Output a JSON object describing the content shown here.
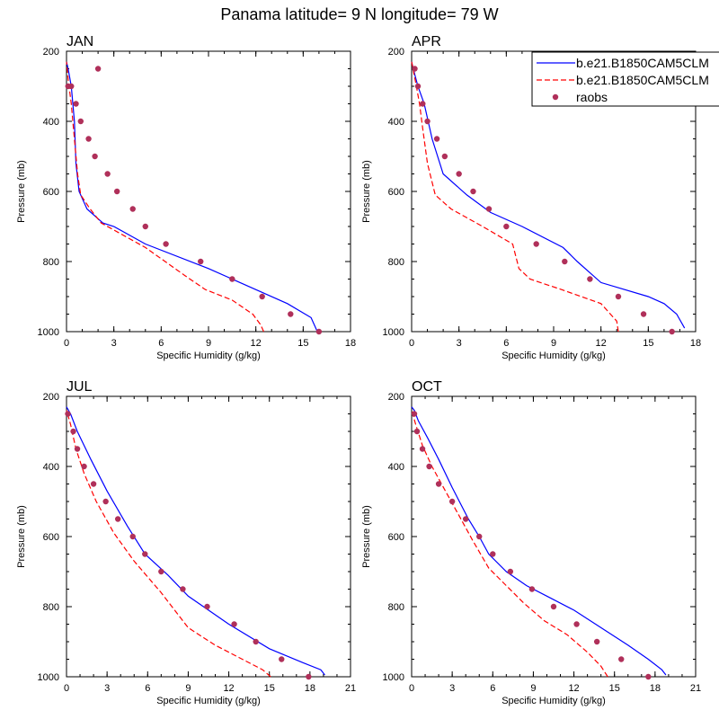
{
  "title": "Panama  latitude= 9 N longitude= 79 W",
  "colors": {
    "model1": "#0000ff",
    "model2": "#ff0000",
    "raobs": "#b0305a"
  },
  "legend": {
    "entries": [
      {
        "label": "b.e21.B1850CAM5CLM",
        "style": "solid",
        "color": "#0000ff"
      },
      {
        "label": "b.e21.B1850CAM5CLM",
        "style": "dashed",
        "color": "#ff0000"
      },
      {
        "label": "raobs",
        "style": "marker",
        "color": "#b0305a"
      }
    ]
  },
  "chart_data": [
    {
      "type": "line",
      "title": "JAN",
      "xlabel": "Specific Humidity (g/kg)",
      "ylabel": "Pressure (mb)",
      "xlim": [
        0,
        18
      ],
      "ylim": [
        1000,
        200
      ],
      "xticks": [
        0,
        3,
        6,
        9,
        12,
        15,
        18
      ],
      "yticks": [
        200,
        400,
        600,
        800,
        1000
      ],
      "series": [
        {
          "name": "b.e21.B1850CAM5CLM",
          "style": "solid",
          "x": [
            15.9,
            15.5,
            14.0,
            11.0,
            9.0,
            5.0,
            3.0,
            2.3,
            1.3,
            0.8,
            0.6,
            0.5,
            0.3,
            0.1,
            0.0
          ],
          "y": [
            1000,
            960,
            920,
            860,
            820,
            750,
            700,
            690,
            650,
            600,
            520,
            400,
            300,
            250,
            230
          ]
        },
        {
          "name": "b.e21.B1850CAM5CLM",
          "style": "dashed",
          "x": [
            12.5,
            12.3,
            11.8,
            10.5,
            8.8,
            7.5,
            5.0,
            2.2,
            1.5,
            0.9,
            0.7,
            0.5,
            0.3,
            0.1,
            0.0
          ],
          "y": [
            1000,
            980,
            950,
            910,
            880,
            840,
            760,
            690,
            650,
            610,
            550,
            450,
            350,
            280,
            230
          ]
        },
        {
          "name": "raobs",
          "style": "marker",
          "x": [
            2.0,
            0.3,
            0.1,
            0.6,
            0.9,
            1.4,
            1.8,
            2.6,
            3.2,
            4.2,
            5.0,
            6.3,
            8.5,
            10.5,
            12.4,
            14.2,
            16.0
          ],
          "y": [
            250,
            300,
            300,
            350,
            400,
            450,
            500,
            550,
            600,
            650,
            700,
            750,
            800,
            850,
            900,
            950,
            1000
          ]
        }
      ]
    },
    {
      "type": "line",
      "title": "APR",
      "xlabel": "Specific Humidity (g/kg)",
      "ylabel": "Pressure (mb)",
      "xlim": [
        0,
        18
      ],
      "ylim": [
        1000,
        200
      ],
      "xticks": [
        0,
        3,
        6,
        9,
        12,
        15,
        18
      ],
      "yticks": [
        200,
        400,
        600,
        800,
        1000
      ],
      "series": [
        {
          "name": "b.e21.B1850CAM5CLM",
          "style": "solid",
          "x": [
            17.3,
            16.8,
            16.0,
            15.0,
            12.0,
            10.5,
            9.6,
            7.0,
            5.0,
            3.5,
            2.0,
            1.3,
            0.8,
            0.4,
            0.1,
            0.0
          ],
          "y": [
            990,
            950,
            920,
            900,
            860,
            800,
            760,
            700,
            660,
            610,
            550,
            450,
            350,
            300,
            250,
            230
          ]
        },
        {
          "name": "b.e21.B1850CAM5CLM",
          "style": "dashed",
          "x": [
            13.1,
            13.0,
            12.0,
            9.5,
            7.5,
            6.8,
            6.4,
            4.5,
            2.5,
            1.5,
            1.0,
            0.7,
            0.5,
            0.3,
            0.0
          ],
          "y": [
            1000,
            970,
            920,
            880,
            850,
            820,
            750,
            700,
            650,
            610,
            520,
            420,
            350,
            300,
            230
          ]
        },
        {
          "name": "raobs",
          "style": "marker",
          "x": [
            0.2,
            0.4,
            0.7,
            1.0,
            1.6,
            2.1,
            3.0,
            3.9,
            4.9,
            6.0,
            7.9,
            9.7,
            11.3,
            13.1,
            14.7,
            16.5
          ],
          "y": [
            250,
            300,
            350,
            400,
            450,
            500,
            550,
            600,
            650,
            700,
            750,
            800,
            850,
            900,
            950,
            1000
          ]
        }
      ]
    },
    {
      "type": "line",
      "title": "JUL",
      "xlabel": "Specific Humidity (g/kg)",
      "ylabel": "Pressure (mb)",
      "xlim": [
        0,
        21
      ],
      "ylim": [
        1000,
        200
      ],
      "xticks": [
        0,
        3,
        6,
        9,
        12,
        15,
        18,
        21
      ],
      "yticks": [
        200,
        400,
        600,
        800,
        1000
      ],
      "series": [
        {
          "name": "b.e21.B1850CAM5CLM",
          "style": "solid",
          "x": [
            19.1,
            18.8,
            17.5,
            15.0,
            12.0,
            9.0,
            7.5,
            5.8,
            4.5,
            3.0,
            1.8,
            0.8,
            0.3,
            0.0
          ],
          "y": [
            995,
            980,
            960,
            920,
            850,
            770,
            710,
            650,
            570,
            470,
            380,
            300,
            250,
            230
          ]
        },
        {
          "name": "b.e21.B1850CAM5CLM",
          "style": "dashed",
          "x": [
            15.1,
            14.5,
            13.0,
            11.0,
            9.0,
            7.0,
            5.0,
            3.5,
            2.2,
            1.3,
            0.7,
            0.3,
            0.0
          ],
          "y": [
            1000,
            980,
            950,
            910,
            860,
            760,
            670,
            590,
            500,
            420,
            350,
            280,
            240
          ]
        },
        {
          "name": "raobs",
          "style": "marker",
          "x": [
            0.1,
            0.5,
            0.8,
            1.3,
            2.0,
            2.9,
            3.8,
            4.9,
            5.8,
            7.0,
            8.6,
            10.4,
            12.4,
            14.0,
            15.9,
            17.9
          ],
          "y": [
            250,
            300,
            350,
            400,
            450,
            500,
            550,
            600,
            650,
            700,
            750,
            800,
            850,
            900,
            950,
            1000
          ]
        }
      ]
    },
    {
      "type": "line",
      "title": "OCT",
      "xlabel": "Specific Humidity (g/kg)",
      "ylabel": "Pressure (mb)",
      "xlim": [
        0,
        21
      ],
      "ylim": [
        1000,
        200
      ],
      "xticks": [
        0,
        3,
        6,
        9,
        12,
        15,
        18,
        21
      ],
      "yticks": [
        200,
        400,
        600,
        800,
        1000
      ],
      "series": [
        {
          "name": "b.e21.B1850CAM5CLM",
          "style": "solid",
          "x": [
            18.8,
            18.5,
            17.5,
            16.0,
            14.0,
            12.0,
            10.0,
            8.5,
            7.0,
            5.7,
            5.0,
            4.2,
            3.0,
            2.0,
            1.2,
            0.5,
            0.2,
            0.0
          ],
          "y": [
            995,
            980,
            950,
            910,
            860,
            810,
            770,
            740,
            700,
            650,
            600,
            550,
            460,
            380,
            320,
            270,
            240,
            230
          ]
        },
        {
          "name": "b.e21.B1850CAM5CLM",
          "style": "dashed",
          "x": [
            14.5,
            14.0,
            13.0,
            11.5,
            9.8,
            8.3,
            7.0,
            5.7,
            4.5,
            3.5,
            2.5,
            1.5,
            0.8,
            0.3,
            0.0
          ],
          "y": [
            1000,
            970,
            930,
            880,
            840,
            790,
            740,
            690,
            610,
            540,
            470,
            400,
            340,
            280,
            240
          ]
        },
        {
          "name": "raobs",
          "style": "marker",
          "x": [
            0.2,
            0.4,
            0.8,
            1.3,
            2.0,
            3.0,
            4.0,
            5.0,
            6.0,
            7.3,
            8.9,
            10.5,
            12.2,
            13.7,
            15.5,
            17.5
          ],
          "y": [
            250,
            300,
            350,
            400,
            450,
            500,
            550,
            600,
            650,
            700,
            750,
            800,
            850,
            900,
            950,
            1000
          ]
        }
      ]
    }
  ]
}
